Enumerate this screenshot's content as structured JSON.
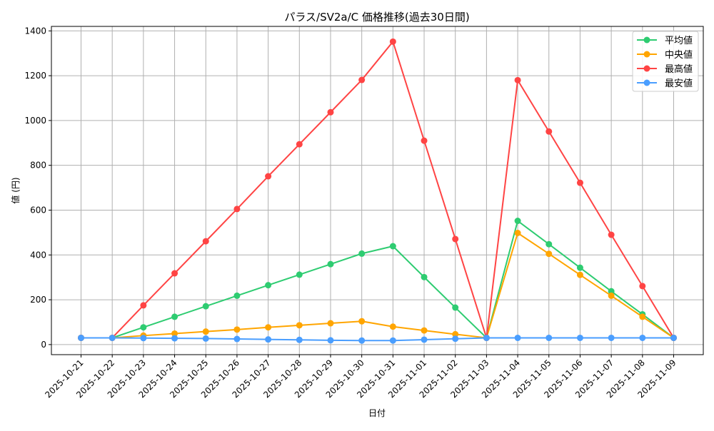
{
  "chart_data": {
    "type": "line",
    "title": "パラス/SV2a/C 価格推移(過去30日間)",
    "xlabel": "日付",
    "ylabel": "値 (円)",
    "x": [
      "2025-10-21",
      "2025-10-22",
      "2025-10-23",
      "2025-10-24",
      "2025-10-25",
      "2025-10-26",
      "2025-10-27",
      "2025-10-28",
      "2025-10-29",
      "2025-10-30",
      "2025-10-31",
      "2025-11-01",
      "2025-11-02",
      "2025-11-03",
      "2025-11-04",
      "2025-11-05",
      "2025-11-06",
      "2025-11-07",
      "2025-11-08",
      "2025-11-09"
    ],
    "ylim": [
      -45,
      1420
    ],
    "yticks": [
      0,
      200,
      400,
      600,
      800,
      1000,
      1200,
      1400
    ],
    "grid": true,
    "legend_position": "top-right",
    "series": [
      {
        "name": "平均値",
        "color": "#2ecc71",
        "values": [
          30,
          30,
          77,
          124,
          171,
          218,
          265,
          312,
          359,
          406,
          439,
          301,
          165,
          30,
          552,
          448,
          343,
          238,
          135,
          30
        ]
      },
      {
        "name": "中央値",
        "color": "#ffa500",
        "values": [
          30,
          30,
          40,
          49,
          58,
          67,
          77,
          86,
          95,
          104,
          80,
          63,
          46,
          30,
          498,
          405,
          311,
          218,
          124,
          30
        ]
      },
      {
        "name": "最高値",
        "color": "#ff4444",
        "values": [
          30,
          30,
          175,
          318,
          461,
          605,
          751,
          894,
          1037,
          1181,
          1352,
          910,
          471,
          30,
          1180,
          951,
          722,
          490,
          261,
          30
        ]
      },
      {
        "name": "最安値",
        "color": "#4a9eff",
        "values": [
          30,
          30,
          29,
          28,
          27,
          25,
          23,
          21,
          19,
          18,
          18,
          22,
          26,
          30,
          30,
          30,
          30,
          30,
          30,
          30
        ]
      }
    ]
  }
}
